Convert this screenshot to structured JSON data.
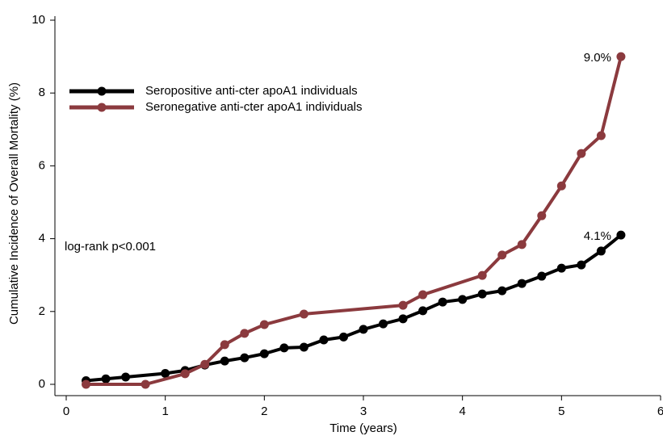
{
  "chart_data": {
    "type": "line",
    "xlabel": "Time (years)",
    "ylabel": "Cumulative Incidence of Overall Mortality (%)",
    "annotation": "log-rank p<0.001",
    "xlim": [
      0,
      6
    ],
    "xticks": [
      0,
      1,
      2,
      3,
      4,
      5,
      6
    ],
    "ylim": [
      0,
      10
    ],
    "yticks": [
      0,
      2,
      4,
      6,
      8,
      10
    ],
    "grid": false,
    "legend": "upper left",
    "series": [
      {
        "name": "Seropositive anti-cter apoA1 individuals",
        "color": "#000000",
        "x": [
          0.2,
          0.4,
          0.6,
          1.0,
          1.2,
          1.4,
          1.6,
          1.8,
          2.0,
          2.2,
          2.4,
          2.6,
          2.8,
          3.0,
          3.2,
          3.4,
          3.6,
          3.8,
          4.0,
          4.2,
          4.4,
          4.6,
          4.8,
          5.0,
          5.2,
          5.4,
          5.6
        ],
        "values": [
          0.1,
          0.15,
          0.2,
          0.3,
          0.38,
          0.53,
          0.64,
          0.73,
          0.84,
          1.0,
          1.02,
          1.22,
          1.3,
          1.51,
          1.66,
          1.8,
          2.02,
          2.26,
          2.33,
          2.48,
          2.57,
          2.77,
          2.97,
          3.19,
          3.28,
          3.66,
          4.1
        ],
        "value_labels": [
          null,
          null,
          null,
          null,
          null,
          null,
          null,
          null,
          null,
          null,
          null,
          null,
          null,
          null,
          null,
          null,
          null,
          null,
          null,
          null,
          null,
          null,
          null,
          null,
          null,
          null,
          "4.1%"
        ]
      },
      {
        "name": "Seronegative anti-cter apoA1 individuals",
        "color": "#8b3a3e",
        "x": [
          0.2,
          0.8,
          1.2,
          1.4,
          1.6,
          1.8,
          2.0,
          2.4,
          3.4,
          3.6,
          4.2,
          4.4,
          4.6,
          4.8,
          5.0,
          5.2,
          5.4,
          5.6
        ],
        "values": [
          0.0,
          0.0,
          0.29,
          0.55,
          1.09,
          1.4,
          1.64,
          1.93,
          2.17,
          2.46,
          2.99,
          3.55,
          3.84,
          4.63,
          5.45,
          6.34,
          6.83,
          9.0
        ],
        "value_labels": [
          null,
          null,
          null,
          null,
          null,
          null,
          null,
          null,
          null,
          null,
          null,
          null,
          null,
          null,
          null,
          null,
          null,
          "9.0%"
        ]
      }
    ]
  }
}
